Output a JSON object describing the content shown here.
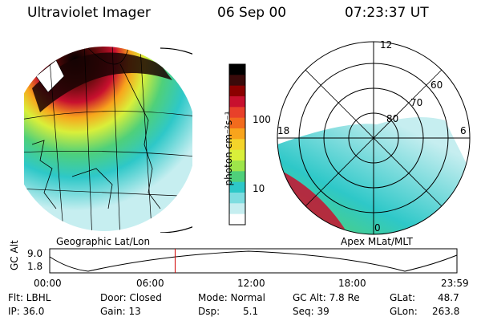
{
  "header": {
    "title": "Ultraviolet Imager",
    "date": "06 Sep 00",
    "time": "07:23:37 UT"
  },
  "colorbar": {
    "unit_label": "photon cm⁻²s⁻¹",
    "ticks": [
      "100",
      "10"
    ],
    "colors": [
      "#000000",
      "#3a0a0a",
      "#8b0000",
      "#c8102e",
      "#e8402a",
      "#f26b1d",
      "#f8a41c",
      "#f4d42a",
      "#d9ef3a",
      "#9ee54a",
      "#4fd07a",
      "#2ec8c8",
      "#7fdde0",
      "#c6eef0",
      "#ffffff"
    ]
  },
  "left_map": {
    "caption": "Geographic Lat/Lon"
  },
  "right_map": {
    "caption": "Apex  MLat/MLT",
    "mlt_labels": {
      "top": "12",
      "left": "18",
      "right": "6",
      "bottom": "0"
    },
    "lat_labels": [
      "60",
      "70",
      "80"
    ]
  },
  "timeline": {
    "axis_label": "GC Alt",
    "y_ticks": [
      "9.0",
      "1.8"
    ],
    "x_ticks": [
      "00:00",
      "06:00",
      "12:00",
      "18:00",
      "23:59"
    ],
    "current_time_fraction": 0.308
  },
  "info": {
    "flt": "Flt: LBHL",
    "ip": "IP: 36.0",
    "door": "Door: Closed",
    "gain": "Gain: 13",
    "mode": "Mode: Normal",
    "dsp_label": "Dsp:",
    "dsp_value": "5.1",
    "gcalt": "GC Alt: 7.8 Re",
    "seq": "Seq: 39",
    "glat_label": "GLat:",
    "glat_value": "48.7",
    "glon_label": "GLon:",
    "glon_value": "263.8"
  }
}
